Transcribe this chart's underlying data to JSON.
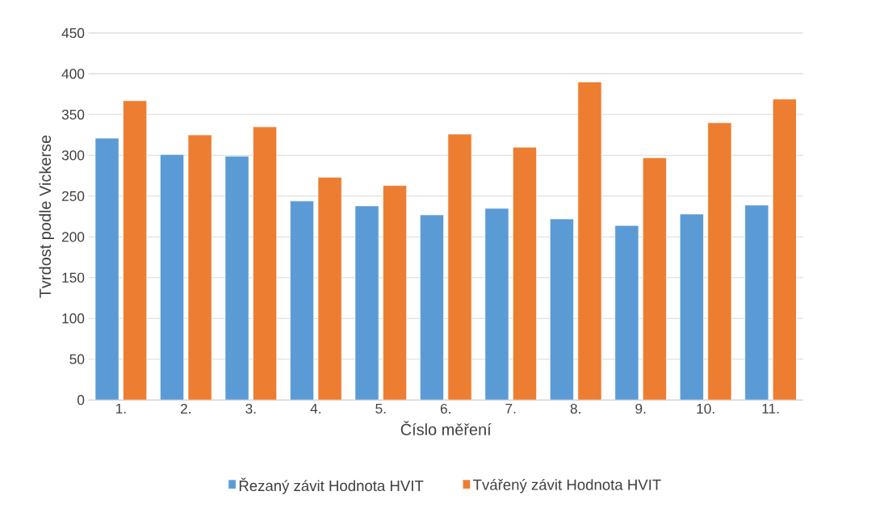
{
  "chart_data": {
    "type": "bar",
    "xlabel": "Číslo měření",
    "ylabel": "Tvrdost podle Vickerse",
    "categories": [
      "1.",
      "2.",
      "3.",
      "4.",
      "5.",
      "6.",
      "7.",
      "8.",
      "9.",
      "10.",
      "11."
    ],
    "series": [
      {
        "name": "Řezaný závit Hodnota HVIT",
        "color": "#5b9bd5",
        "values": [
          321,
          301,
          299,
          244,
          238,
          227,
          235,
          222,
          214,
          228,
          239
        ]
      },
      {
        "name": "Tvářený závit Hodnota HVIT",
        "color": "#ed7d31",
        "values": [
          367,
          325,
          335,
          273,
          263,
          326,
          310,
          390,
          297,
          340,
          369
        ]
      }
    ],
    "ylim": [
      0,
      450
    ],
    "yticks": [
      0,
      50,
      100,
      150,
      200,
      250,
      300,
      350,
      400,
      450
    ],
    "grid": "y",
    "legend": "bottom"
  }
}
